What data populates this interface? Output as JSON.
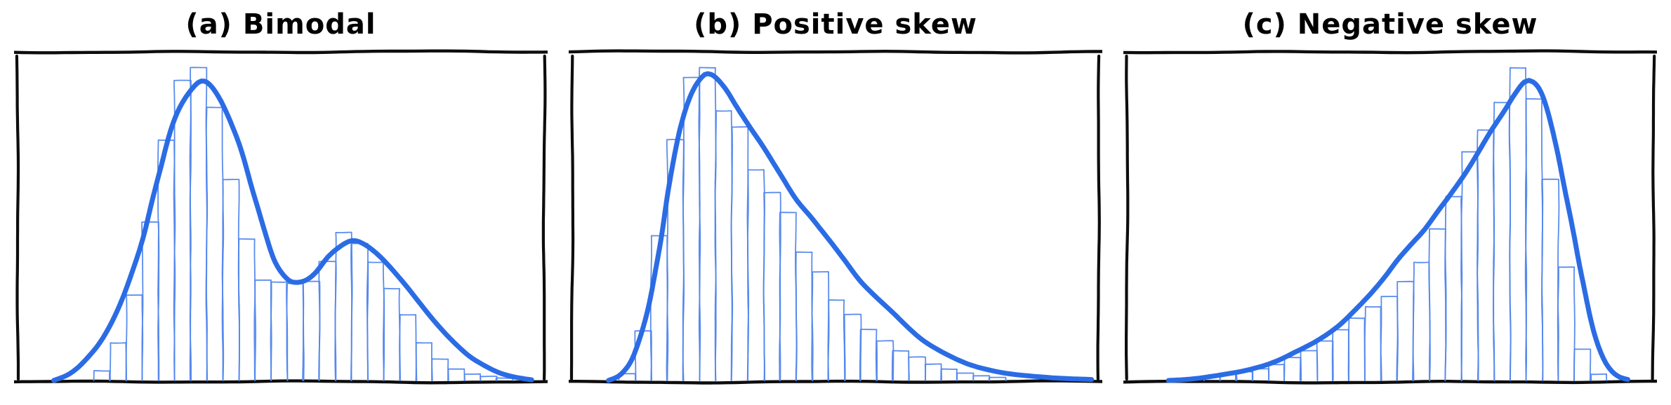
{
  "figure": {
    "background_color": "#ffffff",
    "ink_color": "#0d0d0d",
    "curve_color": "#2b6ce5",
    "hist_color": "#5186ee",
    "style": "xkcd-hand-drawn",
    "panels_count": 3
  },
  "chart_data": [
    {
      "panel_label": "a",
      "type": "bar",
      "subtype": "histogram_with_kde_overlay",
      "title": "(a) Bimodal",
      "xlabel": "",
      "ylabel": "",
      "axis": {
        "ticks": "none",
        "frame": "hand-drawn-rectangle",
        "x_range_frac": [
          0,
          1
        ],
        "y_range_frac": [
          0,
          1.05
        ],
        "grid": false,
        "legend": "none"
      },
      "histogram": {
        "first_bin_left_frac": 0.146,
        "bin_width_frac": 0.0305,
        "heights_frac": [
          0.03,
          0.115,
          0.26,
          0.48,
          0.73,
          0.91,
          0.95,
          0.83,
          0.61,
          0.43,
          0.305,
          0.3,
          0.295,
          0.3,
          0.36,
          0.45,
          0.415,
          0.36,
          0.28,
          0.2,
          0.115,
          0.065,
          0.035,
          0.02,
          0.012,
          0.006
        ]
      },
      "kde_curve": {
        "peaks_frac": [
          {
            "x": 0.356,
            "y": 0.91
          },
          {
            "x": 0.635,
            "y": 0.423
          }
        ],
        "valley_frac": {
          "x": 0.525,
          "y": 0.298
        },
        "points_frac": [
          [
            0.07,
            0.0
          ],
          [
            0.1,
            0.02
          ],
          [
            0.13,
            0.06
          ],
          [
            0.165,
            0.13
          ],
          [
            0.2,
            0.25
          ],
          [
            0.235,
            0.42
          ],
          [
            0.27,
            0.63
          ],
          [
            0.3,
            0.8
          ],
          [
            0.33,
            0.885
          ],
          [
            0.356,
            0.91
          ],
          [
            0.385,
            0.855
          ],
          [
            0.415,
            0.74
          ],
          [
            0.445,
            0.58
          ],
          [
            0.47,
            0.45
          ],
          [
            0.49,
            0.36
          ],
          [
            0.51,
            0.312
          ],
          [
            0.525,
            0.298
          ],
          [
            0.545,
            0.302
          ],
          [
            0.565,
            0.325
          ],
          [
            0.59,
            0.375
          ],
          [
            0.615,
            0.408
          ],
          [
            0.635,
            0.423
          ],
          [
            0.655,
            0.415
          ],
          [
            0.68,
            0.388
          ],
          [
            0.705,
            0.35
          ],
          [
            0.735,
            0.295
          ],
          [
            0.765,
            0.235
          ],
          [
            0.795,
            0.175
          ],
          [
            0.825,
            0.12
          ],
          [
            0.855,
            0.075
          ],
          [
            0.885,
            0.045
          ],
          [
            0.915,
            0.022
          ],
          [
            0.945,
            0.009
          ],
          [
            0.975,
            0.002
          ]
        ]
      }
    },
    {
      "panel_label": "b",
      "type": "bar",
      "subtype": "histogram_with_kde_overlay",
      "title": "(b) Positive skew",
      "xlabel": "",
      "ylabel": "",
      "axis": {
        "ticks": "none",
        "frame": "hand-drawn-rectangle",
        "x_range_frac": [
          0,
          1
        ],
        "y_range_frac": [
          0,
          1.05
        ],
        "grid": false,
        "legend": "none"
      },
      "histogram": {
        "first_bin_left_frac": 0.09,
        "bin_width_frac": 0.0305,
        "heights_frac": [
          0.02,
          0.15,
          0.44,
          0.73,
          0.92,
          0.95,
          0.82,
          0.77,
          0.64,
          0.57,
          0.51,
          0.39,
          0.33,
          0.245,
          0.2,
          0.155,
          0.12,
          0.09,
          0.07,
          0.05,
          0.035,
          0.022,
          0.014,
          0.008
        ]
      },
      "kde_curve": {
        "peaks_frac": [
          {
            "x": 0.265,
            "y": 0.93
          }
        ],
        "points_frac": [
          [
            0.07,
            0.0
          ],
          [
            0.095,
            0.02
          ],
          [
            0.12,
            0.08
          ],
          [
            0.145,
            0.22
          ],
          [
            0.17,
            0.45
          ],
          [
            0.195,
            0.68
          ],
          [
            0.22,
            0.845
          ],
          [
            0.245,
            0.92
          ],
          [
            0.265,
            0.93
          ],
          [
            0.29,
            0.89
          ],
          [
            0.315,
            0.825
          ],
          [
            0.34,
            0.76
          ],
          [
            0.365,
            0.7
          ],
          [
            0.395,
            0.625
          ],
          [
            0.425,
            0.55
          ],
          [
            0.455,
            0.495
          ],
          [
            0.485,
            0.435
          ],
          [
            0.515,
            0.37
          ],
          [
            0.545,
            0.305
          ],
          [
            0.575,
            0.255
          ],
          [
            0.605,
            0.21
          ],
          [
            0.635,
            0.165
          ],
          [
            0.665,
            0.125
          ],
          [
            0.695,
            0.095
          ],
          [
            0.725,
            0.07
          ],
          [
            0.755,
            0.05
          ],
          [
            0.79,
            0.034
          ],
          [
            0.83,
            0.02
          ],
          [
            0.87,
            0.012
          ],
          [
            0.91,
            0.007
          ],
          [
            0.95,
            0.004
          ],
          [
            0.985,
            0.002
          ]
        ]
      }
    },
    {
      "panel_label": "c",
      "type": "bar",
      "subtype": "histogram_with_kde_overlay",
      "title": "(c) Negative skew",
      "xlabel": "",
      "ylabel": "",
      "axis": {
        "ticks": "none",
        "frame": "hand-drawn-rectangle",
        "x_range_frac": [
          0,
          1
        ],
        "y_range_frac": [
          0,
          1.05
        ],
        "grid": false,
        "legend": "none"
      },
      "histogram": {
        "first_bin_left_frac": 0.117,
        "bin_width_frac": 0.0305,
        "heights_frac": [
          0.008,
          0.012,
          0.018,
          0.025,
          0.035,
          0.05,
          0.07,
          0.09,
          0.12,
          0.155,
          0.19,
          0.225,
          0.255,
          0.3,
          0.36,
          0.46,
          0.56,
          0.695,
          0.76,
          0.845,
          0.95,
          0.855,
          0.61,
          0.345,
          0.095,
          0.02
        ]
      },
      "kde_curve": {
        "peaks_frac": [
          {
            "x": 0.758,
            "y": 0.91
          }
        ],
        "points_frac": [
          [
            0.08,
            0.002
          ],
          [
            0.13,
            0.008
          ],
          [
            0.18,
            0.018
          ],
          [
            0.23,
            0.032
          ],
          [
            0.28,
            0.055
          ],
          [
            0.32,
            0.085
          ],
          [
            0.36,
            0.12
          ],
          [
            0.4,
            0.165
          ],
          [
            0.43,
            0.21
          ],
          [
            0.46,
            0.26
          ],
          [
            0.49,
            0.315
          ],
          [
            0.515,
            0.365
          ],
          [
            0.54,
            0.41
          ],
          [
            0.565,
            0.455
          ],
          [
            0.59,
            0.51
          ],
          [
            0.615,
            0.565
          ],
          [
            0.64,
            0.625
          ],
          [
            0.665,
            0.69
          ],
          [
            0.69,
            0.755
          ],
          [
            0.715,
            0.815
          ],
          [
            0.735,
            0.865
          ],
          [
            0.755,
            0.905
          ],
          [
            0.77,
            0.905
          ],
          [
            0.785,
            0.875
          ],
          [
            0.8,
            0.81
          ],
          [
            0.815,
            0.715
          ],
          [
            0.83,
            0.6
          ],
          [
            0.845,
            0.465
          ],
          [
            0.86,
            0.335
          ],
          [
            0.875,
            0.22
          ],
          [
            0.89,
            0.13
          ],
          [
            0.905,
            0.065
          ],
          [
            0.92,
            0.028
          ],
          [
            0.935,
            0.01
          ],
          [
            0.95,
            0.003
          ]
        ]
      }
    }
  ]
}
